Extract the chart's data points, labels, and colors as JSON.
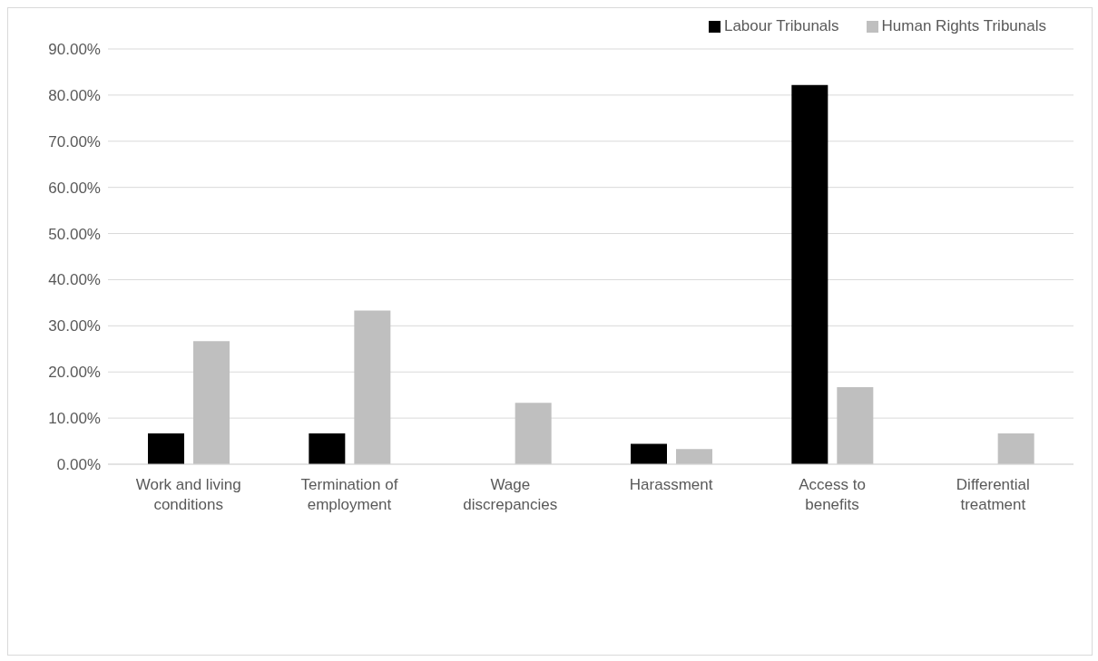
{
  "chart_data": {
    "type": "bar",
    "categories": [
      "Work and living conditions",
      "Termination of employment",
      "Wage discrepancies",
      "Harassment",
      "Access to benefits",
      "Differential treatment"
    ],
    "series": [
      {
        "name": "Labour Tribunals",
        "color": "#000000",
        "values": [
          6.7,
          6.7,
          0,
          4.4,
          82.2,
          0
        ]
      },
      {
        "name": "Human Rights Tribunals",
        "color": "#bfbfbf",
        "values": [
          26.7,
          33.3,
          13.3,
          3.3,
          16.7,
          6.7
        ]
      }
    ],
    "ylim": [
      0,
      90
    ],
    "yticks": [
      {
        "value": 0,
        "label": "0.00%"
      },
      {
        "value": 10,
        "label": "10.00%"
      },
      {
        "value": 20,
        "label": "20.00%"
      },
      {
        "value": 30,
        "label": "30.00%"
      },
      {
        "value": 40,
        "label": "40.00%"
      },
      {
        "value": 50,
        "label": "50.00%"
      },
      {
        "value": 60,
        "label": "60.00%"
      },
      {
        "value": 70,
        "label": "70.00%"
      },
      {
        "value": 80,
        "label": "80.00%"
      },
      {
        "value": 90,
        "label": "90.00%"
      }
    ],
    "grid": "y",
    "legend": "top right"
  }
}
